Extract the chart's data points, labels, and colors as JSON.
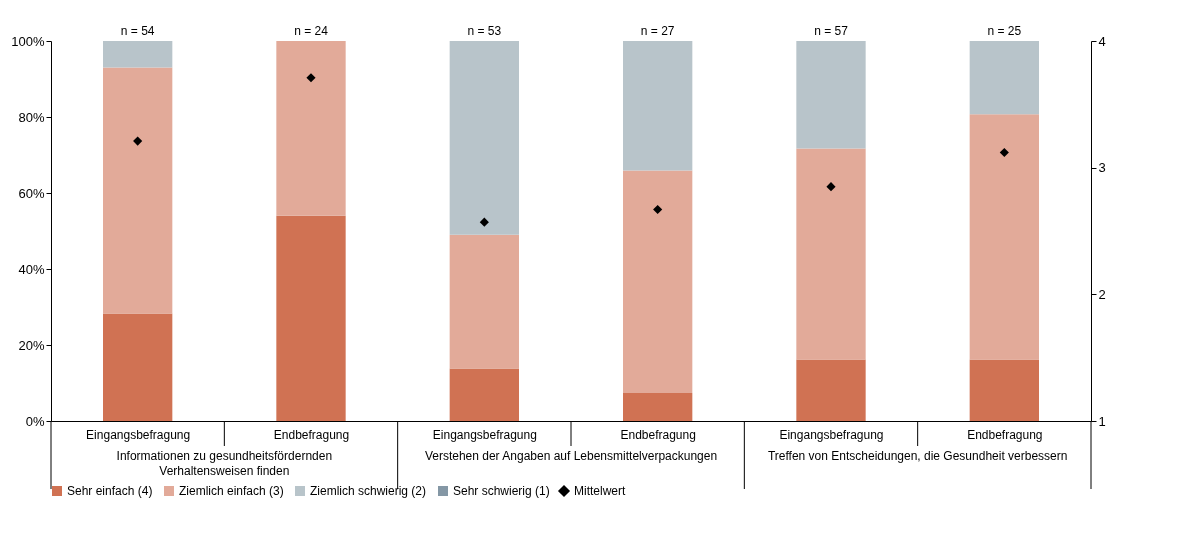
{
  "chart_data": {
    "type": "bar",
    "stacked": true,
    "categories": [
      "Eingangsbefragung",
      "Endbefragung",
      "Eingangsbefragung",
      "Endbefragung",
      "Eingangsbefragung",
      "Endbefragung"
    ],
    "series": [
      {
        "name": "Sehr einfach (4)",
        "color": "#d07253",
        "values": [
          28.3,
          54,
          13.8,
          7.4,
          16.2,
          16.2
        ]
      },
      {
        "name": "Ziemlich einfach (3)",
        "color": "#e2aa99",
        "values": [
          64.7,
          46,
          35.2,
          58.5,
          55.5,
          64.5
        ]
      },
      {
        "name": "Ziemlich schwierig (2)",
        "color": "#b8c4ca",
        "values": [
          7,
          0,
          51,
          34.1,
          28.3,
          19.3
        ]
      },
      {
        "name": "Sehr schwierig (1)",
        "color": "#8497a5",
        "values": [
          0,
          0,
          0,
          0,
          0,
          0
        ]
      },
      {
        "name": "Mittelwert",
        "type": "scatter",
        "axis": "y2",
        "marker": "diamond",
        "color": "#000000",
        "values": [
          3.21,
          3.71,
          2.57,
          2.67,
          2.85,
          3.12
        ]
      }
    ],
    "ylim": [
      0,
      100
    ],
    "yticks": [
      {
        "value": 0,
        "label": "0%"
      },
      {
        "value": 20,
        "label": "20%"
      },
      {
        "value": 40,
        "label": "40%"
      },
      {
        "value": 60,
        "label": "60%"
      },
      {
        "value": 80,
        "label": "80%"
      },
      {
        "value": 100,
        "label": "100%"
      }
    ],
    "y2lim": [
      1,
      4
    ],
    "y2ticks": [
      1,
      2,
      3,
      4
    ],
    "annotations": [
      "n = 54",
      "n = 24",
      "n = 53",
      "n = 27",
      "n = 57",
      "n = 25",
      "Informationen zu gesundheitsfördernden Verhaltensweisen finden",
      "Verstehen der Angaben auf Lebensmittelverpackungen",
      "Treffen von Entscheidungen, die Gesundheit verbessern"
    ],
    "grid": false,
    "legend": "bottom"
  }
}
